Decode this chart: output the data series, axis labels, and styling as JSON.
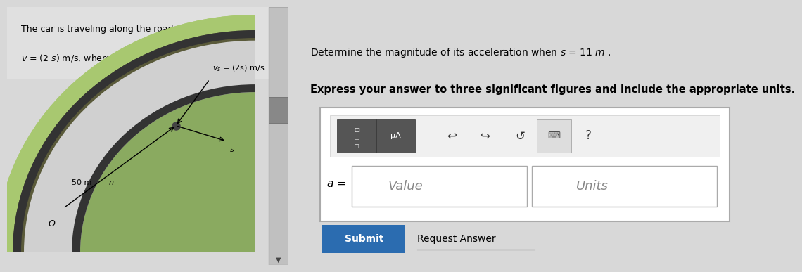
{
  "bg_color": "#d8d8d8",
  "left_panel_bg": "#e8e8e8",
  "right_panel_bg": "#e8e8e8",
  "divider_color": "#aaaaaa",
  "header_text_line1": "The car is traveling along the road with a speed of",
  "header_text_line2": "v = (2 s) m/s, where s is in meters. (Figure 1)",
  "road_label": "v = (2s) m/s",
  "road_label_50m": "50 m",
  "road_label_n": "n",
  "road_label_s": "s",
  "road_label_o": "O",
  "problem_line1": "Determine the magnitude of its acceleration when s = 11 m .",
  "problem_line2": "Express your answer to three significant figures and include the appropriate units.",
  "eq_label": "a =",
  "value_placeholder": "Value",
  "units_placeholder": "Units",
  "submit_text": "Submit",
  "request_answer_text": "Request Answer",
  "question_mark": "?",
  "mu_A_text": "μA",
  "toolbar_bg": "#555555",
  "submit_btn_color": "#2b6cb0",
  "submit_btn_text_color": "#ffffff",
  "road_outer_color": "#5a5a3a",
  "road_surface_color": "#c8c8c8",
  "road_inner_color": "#8aaa60",
  "road_grass_color": "#a8c870"
}
